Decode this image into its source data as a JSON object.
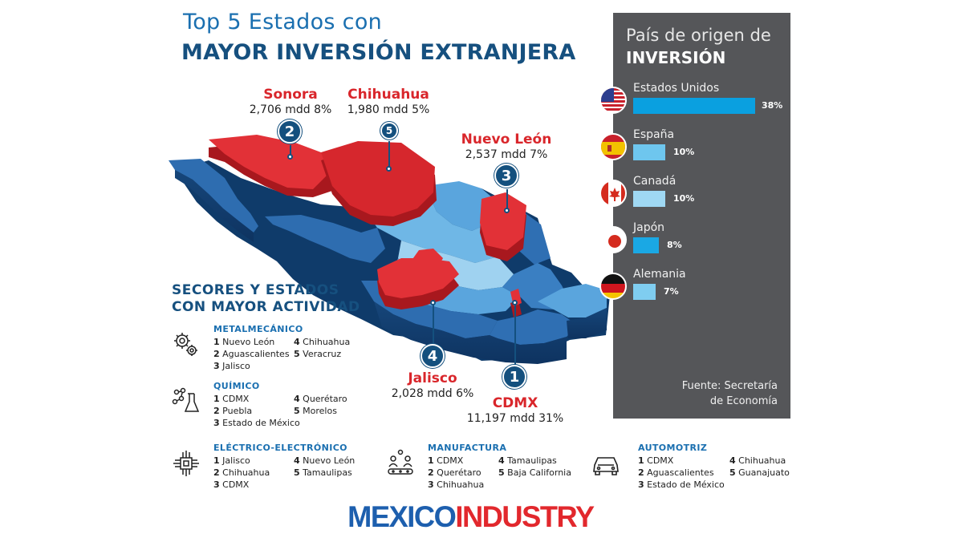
{
  "title": {
    "line1": "Top 5 Estados con",
    "line2": "MAYOR INVERSIÓN EXTRANJERA"
  },
  "states": [
    {
      "rank": "1",
      "name": "CDMX",
      "value": "11,197 mdd 31%"
    },
    {
      "rank": "2",
      "name": "Sonora",
      "value": "2,706 mdd 8%"
    },
    {
      "rank": "3",
      "name": "Nuevo León",
      "value": "2,537 mdd 7%"
    },
    {
      "rank": "4",
      "name": "Jalisco",
      "value": "2,028 mdd 6%"
    },
    {
      "rank": "5",
      "name": "Chihuahua",
      "value": "1,980 mdd 5%"
    }
  ],
  "origin": {
    "title1": "País de origen de",
    "title2": "INVERSIÓN",
    "countries": [
      {
        "name": "Estados Unidos",
        "pct": "38%",
        "value": 38,
        "color": "#0aa0e0",
        "flag": "usa-flag-icon"
      },
      {
        "name": "España",
        "pct": "10%",
        "value": 10,
        "color": "#6ec6ee",
        "flag": "spain-flag-icon"
      },
      {
        "name": "Canadá",
        "pct": "10%",
        "value": 10,
        "color": "#9fd8f3",
        "flag": "canada-flag-icon"
      },
      {
        "name": "Japón",
        "pct": "8%",
        "value": 8,
        "color": "#1aa8e4",
        "flag": "japan-flag-icon"
      },
      {
        "name": "Alemania",
        "pct": "7%",
        "value": 7,
        "color": "#7fcdf0",
        "flag": "germany-flag-icon"
      }
    ],
    "source": [
      "Fuente: Secretaría",
      "de Economía"
    ]
  },
  "sectors_title": [
    "SECORES Y ESTADOS",
    "CON MAYOR ACTIVIDAD"
  ],
  "sectors": [
    {
      "name": "METALMECÁNICO",
      "icon": "gears-icon",
      "col1": [
        [
          "1",
          "Nuevo León"
        ],
        [
          "2",
          "Aguascalientes"
        ],
        [
          "3",
          "Jalisco"
        ]
      ],
      "col2": [
        [
          "4",
          "Chihuahua"
        ],
        [
          "5",
          "Veracruz"
        ]
      ]
    },
    {
      "name": "QUÍMICO",
      "icon": "flask-molecule-icon",
      "col1": [
        [
          "1",
          "CDMX"
        ],
        [
          "2",
          "Puebla"
        ],
        [
          "3",
          "Estado de México"
        ]
      ],
      "col2": [
        [
          "4",
          "Querétaro"
        ],
        [
          "5",
          "Morelos"
        ]
      ]
    },
    {
      "name": "ELÉCTRICO-ELECTRÓNICO",
      "icon": "circuit-chip-icon",
      "col1": [
        [
          "1",
          "Jalisco"
        ],
        [
          "2",
          "Chihuahua"
        ],
        [
          "3",
          "CDMX"
        ]
      ],
      "col2": [
        [
          "4",
          "Nuevo León"
        ],
        [
          "5",
          "Tamaulipas"
        ]
      ]
    },
    {
      "name": "MANUFACTURA",
      "icon": "conveyor-workers-icon",
      "col1": [
        [
          "1",
          "CDMX"
        ],
        [
          "2",
          "Querétaro"
        ],
        [
          "3",
          "Chihuahua"
        ]
      ],
      "col2": [
        [
          "4",
          "Tamaulipas"
        ],
        [
          "5",
          "Baja California"
        ]
      ]
    },
    {
      "name": "AUTOMOTRIZ",
      "icon": "car-icon",
      "col1": [
        [
          "1",
          "CDMX"
        ],
        [
          "2",
          "Aguascalientes"
        ],
        [
          "3",
          "Estado de México"
        ]
      ],
      "col2": [
        [
          "4",
          "Chihuahua"
        ],
        [
          "5",
          "Guanajuato"
        ]
      ]
    }
  ],
  "logo": {
    "part1": "MEXICO",
    "part2": "INDUSTRY"
  },
  "colors": {
    "red": "#d9262b",
    "navy": "#14507e",
    "blue": "#1a6fb0",
    "panel": "#555659"
  }
}
